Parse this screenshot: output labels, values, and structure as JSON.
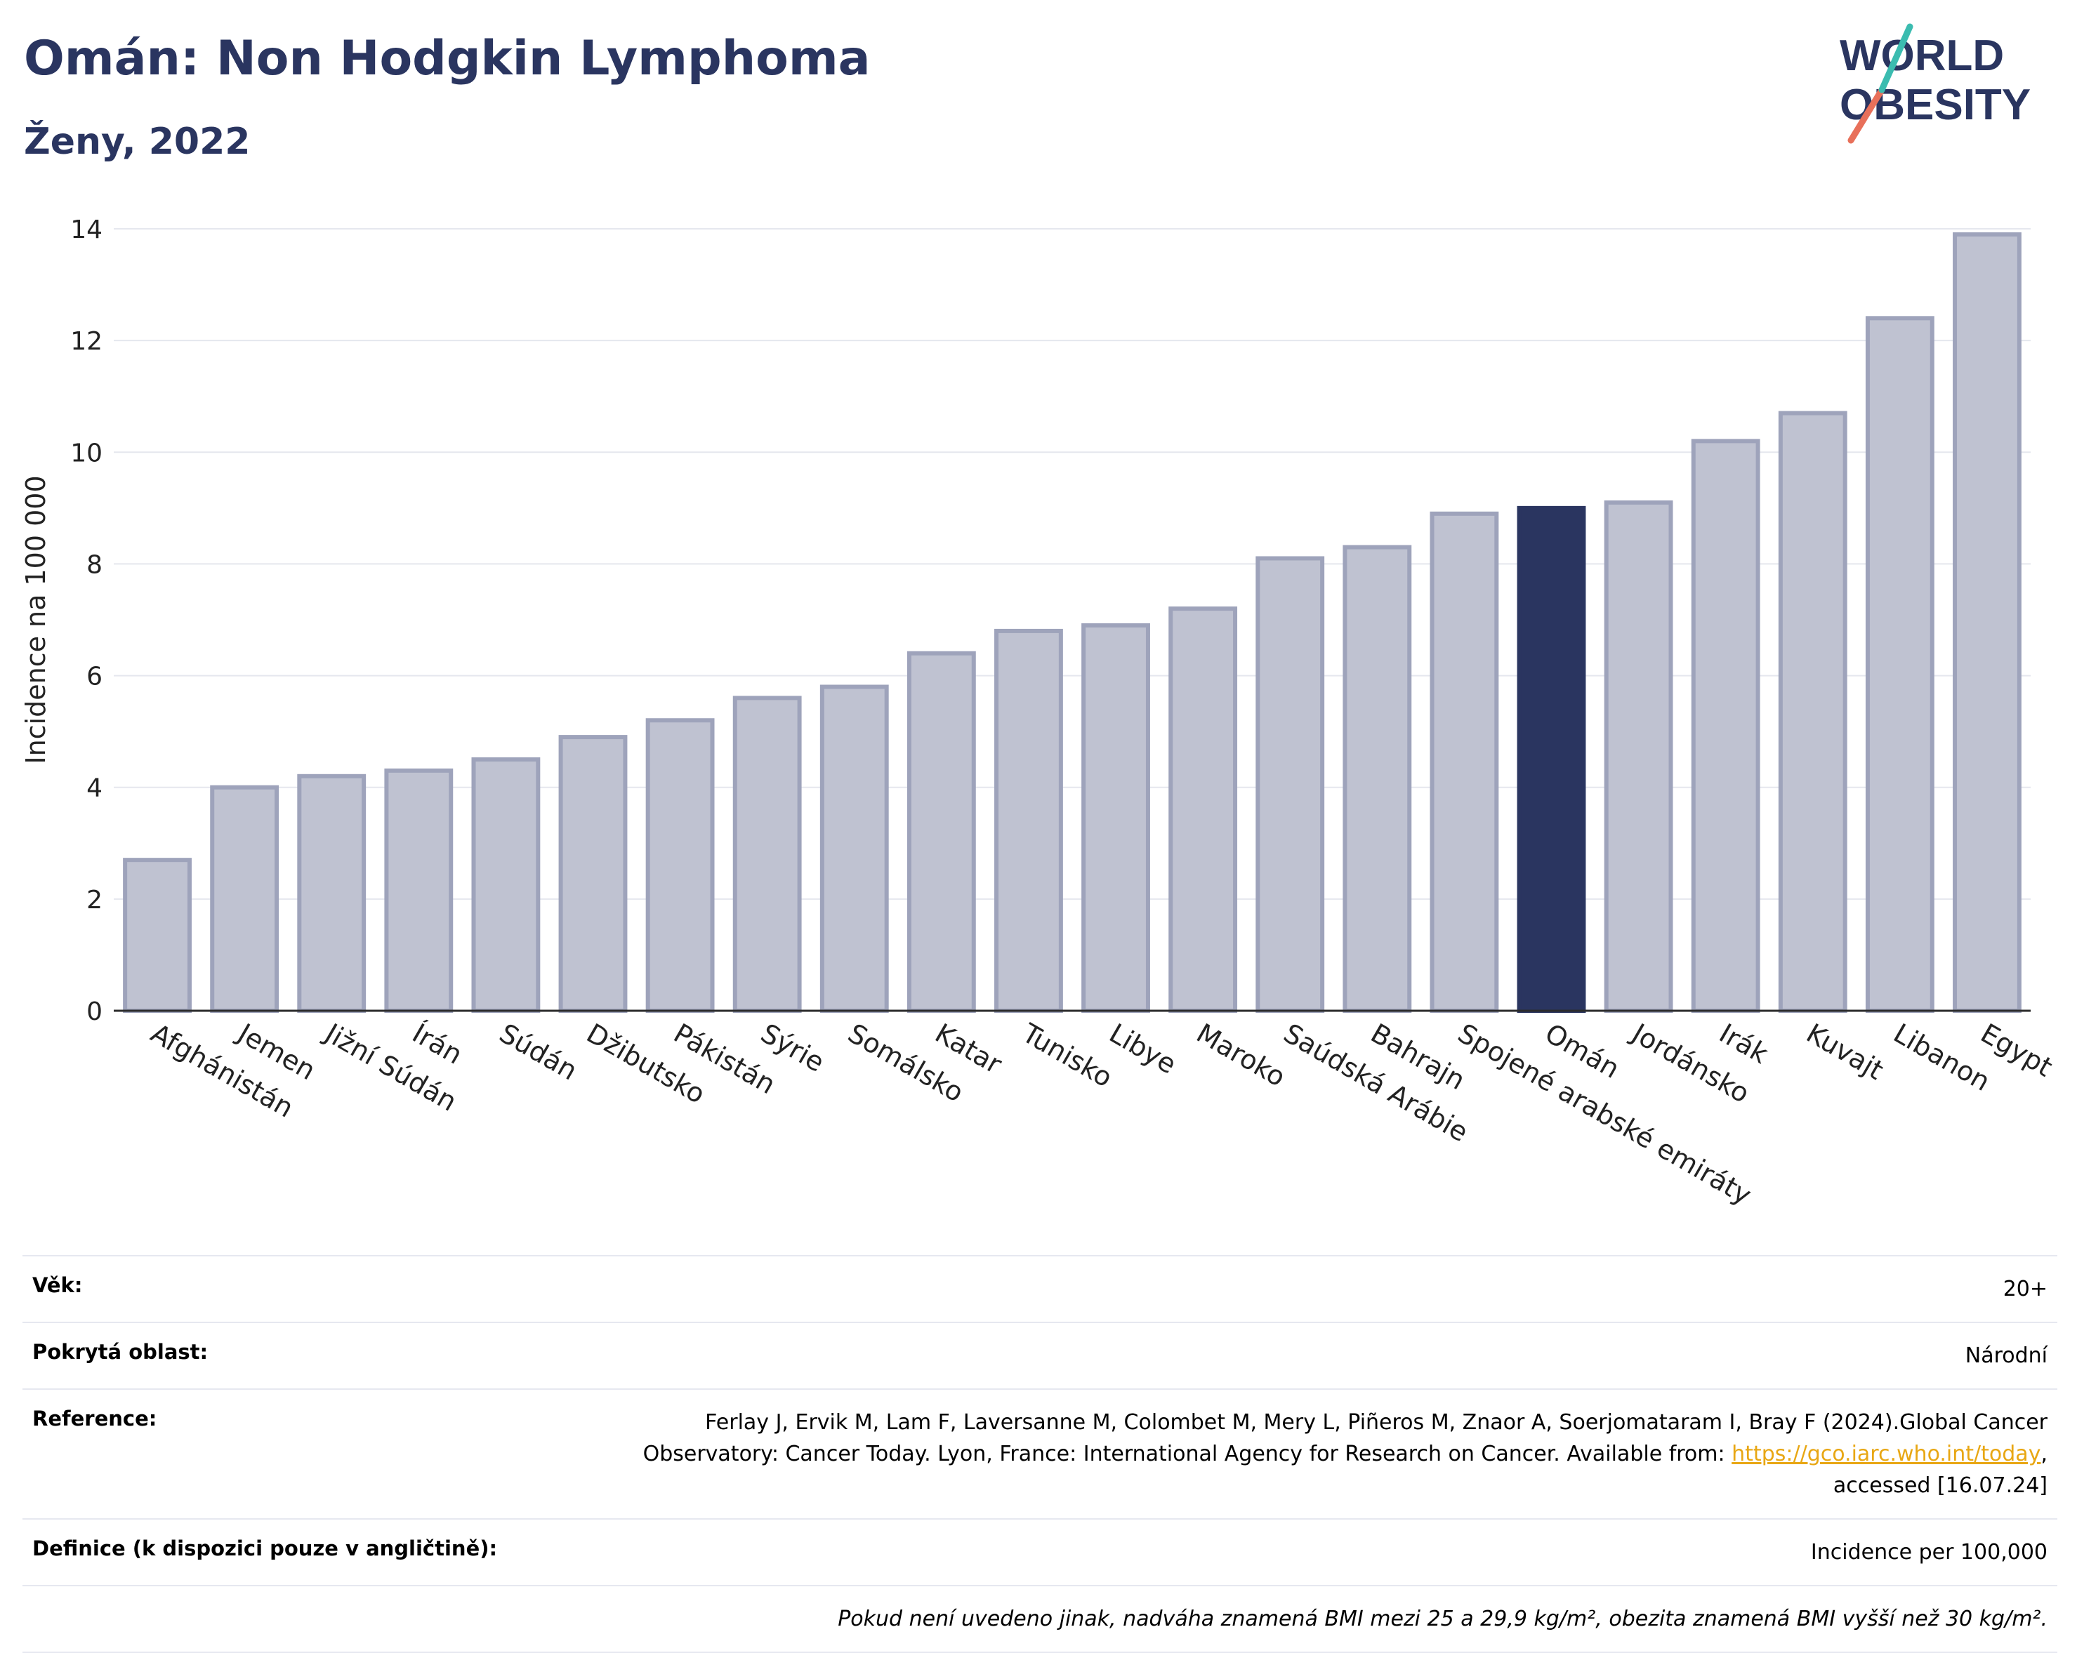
{
  "header": {
    "title": "Omán: Non Hodgkin Lymphoma",
    "subtitle": "Ženy, 2022"
  },
  "logo": {
    "line1": "WORLD",
    "line2": "OBESITY"
  },
  "colors": {
    "bar": "#bfc2d1",
    "bar_border": "#9ea3bb",
    "highlight": "#2a3560",
    "grid": "#e5e7ee",
    "title": "#2a3560"
  },
  "chart_data": {
    "type": "bar",
    "ylabel": "Incidence na 100 000",
    "ylim": [
      0,
      14
    ],
    "yticks": [
      0,
      2,
      4,
      6,
      8,
      10,
      12,
      14
    ],
    "grid": true,
    "highlight": "Omán",
    "categories": [
      "Afghánistán",
      "Jemen",
      "Jižní Súdán",
      "Írán",
      "Súdán",
      "Džibutsko",
      "Pákistán",
      "Sýrie",
      "Somálsko",
      "Katar",
      "Tunisko",
      "Libye",
      "Maroko",
      "Saúdská Arábie",
      "Bahrajn",
      "Spojené arabské emiráty",
      "Omán",
      "Jordánsko",
      "Irák",
      "Kuvajt",
      "Libanon",
      "Egypt"
    ],
    "values": [
      2.7,
      4.0,
      4.2,
      4.3,
      4.5,
      4.9,
      5.2,
      5.6,
      5.8,
      6.4,
      6.8,
      6.9,
      7.2,
      8.1,
      8.3,
      8.9,
      9.0,
      9.1,
      10.2,
      10.7,
      12.4,
      13.9
    ]
  },
  "info": {
    "age_label": "Věk:",
    "age_value": "20+",
    "coverage_label": "Pokrytá oblast:",
    "coverage_value": "Národní",
    "reference_label": "Reference:",
    "reference_line1": "Ferlay J, Ervik M, Lam F, Laversanne M, Colombet M, Mery L, Piñeros M, Znaor A, Soerjomataram I, Bray F (2024).Global Cancer",
    "reference_line2": "Observatory: Cancer Today. Lyon, France: International Agency for Research on Cancer. Available from: ",
    "reference_link": "https://gco.iarc.who.int/today",
    "reference_line3": "accessed [16.07.24]",
    "definition_label": "Definice (k dispozici pouze v angličtině):",
    "definition_value": "Incidence per 100,000",
    "note": "Pokud není uvedeno jinak, nadváha znamená BMI mezi 25 a 29,9 kg/m², obezita znamená BMI vyšší než 30 kg/m²."
  }
}
